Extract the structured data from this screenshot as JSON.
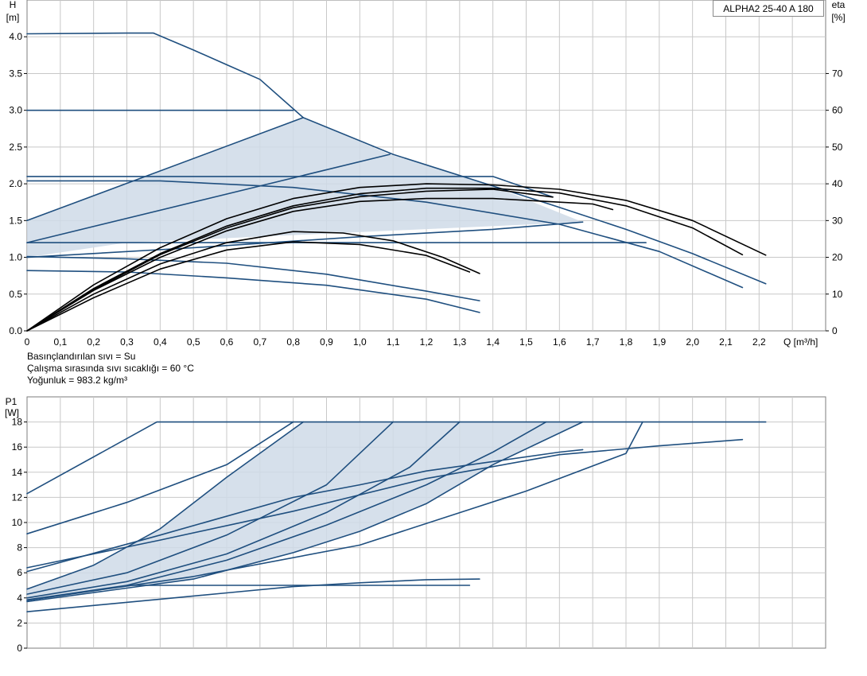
{
  "model": "ALPHA2 25-40 A 180",
  "notes": {
    "liquid": "Basınçlandırılan sıvı = Su",
    "temperature": "Çalışma sırasında sıvı sıcaklığı = 60 °C",
    "density": "Yoğunluk = 983.2 kg/m³"
  },
  "colors": {
    "curve": "#1f4f7f",
    "eff": "#000000",
    "fill": "#cfdae7",
    "grid": "#c8c8c8"
  },
  "chart_data": [
    {
      "type": "line",
      "y_title": "H",
      "y_unit": "[m]",
      "y2_title": "eta",
      "y2_unit": "[%]",
      "x_unit": "Q [m³/h]",
      "xlim": [
        0,
        2.4
      ],
      "ylim": [
        0,
        4.5
      ],
      "y2lim": [
        0,
        90
      ],
      "x_ticks": [
        "0",
        "0,1",
        "0,2",
        "0,3",
        "0,4",
        "0,5",
        "0,6",
        "0,7",
        "0,8",
        "0,9",
        "1,0",
        "1,1",
        "1,2",
        "1,3",
        "1,4",
        "1,5",
        "1,6",
        "1,7",
        "1,8",
        "1,9",
        "2,0",
        "2,1",
        "2,2"
      ],
      "y_ticks": [
        "0.0",
        "0.5",
        "1.0",
        "1.5",
        "2.0",
        "2.5",
        "3.0",
        "3.5",
        "4.0"
      ],
      "y2_ticks": [
        "0",
        "10",
        "20",
        "30",
        "40",
        "50",
        "60",
        "70"
      ],
      "grid": true,
      "shaded_region": [
        [
          0,
          1.5
        ],
        [
          0.83,
          2.9
        ],
        [
          1.09,
          2.4
        ],
        [
          1.4,
          1.97
        ],
        [
          1.67,
          1.48
        ],
        [
          0.3,
          1.2
        ],
        [
          0,
          1.0
        ]
      ],
      "series": [
        {
          "kind": "head",
          "points": [
            [
              0,
              4.04
            ],
            [
              0.3,
              4.05
            ],
            [
              0.38,
              4.05
            ],
            [
              0.5,
              3.82
            ],
            [
              0.6,
              3.62
            ],
            [
              0.7,
              3.42
            ],
            [
              0.83,
              2.9
            ],
            [
              1.1,
              2.4
            ],
            [
              1.4,
              1.97
            ],
            [
              1.6,
              1.68
            ],
            [
              1.8,
              1.38
            ],
            [
              2.0,
              1.05
            ],
            [
              2.22,
              0.64
            ]
          ]
        },
        {
          "kind": "head",
          "points": [
            [
              0,
              3.0
            ],
            [
              0.8,
              3.0
            ]
          ]
        },
        {
          "kind": "head",
          "points": [
            [
              0,
              1.5
            ],
            [
              0.83,
              2.9
            ]
          ]
        },
        {
          "kind": "head",
          "points": [
            [
              0,
              1.2
            ],
            [
              1.09,
              2.4
            ]
          ]
        },
        {
          "kind": "head",
          "points": [
            [
              0,
              1.0
            ],
            [
              0.5,
              1.13
            ],
            [
              1.0,
              1.28
            ],
            [
              1.4,
              1.38
            ],
            [
              1.67,
              1.48
            ]
          ]
        },
        {
          "kind": "head",
          "points": [
            [
              0,
              2.1
            ],
            [
              1.4,
              2.1
            ],
            [
              1.58,
              1.82
            ]
          ]
        },
        {
          "kind": "head",
          "points": [
            [
              0,
              1.2
            ],
            [
              1.86,
              1.2
            ]
          ]
        },
        {
          "kind": "head",
          "points": [
            [
              0,
              2.04
            ],
            [
              0.4,
              2.04
            ],
            [
              0.8,
              1.95
            ],
            [
              1.2,
              1.75
            ],
            [
              1.6,
              1.45
            ],
            [
              1.9,
              1.08
            ],
            [
              2.15,
              0.59
            ]
          ]
        },
        {
          "kind": "head",
          "points": [
            [
              0,
              1.01
            ],
            [
              0.3,
              0.98
            ],
            [
              0.6,
              0.92
            ],
            [
              0.9,
              0.77
            ],
            [
              1.2,
              0.54
            ],
            [
              1.36,
              0.41
            ]
          ]
        },
        {
          "kind": "head",
          "points": [
            [
              0,
              0.82
            ],
            [
              0.3,
              0.8
            ],
            [
              0.6,
              0.72
            ],
            [
              0.9,
              0.62
            ],
            [
              1.2,
              0.43
            ],
            [
              1.36,
              0.25
            ]
          ]
        },
        {
          "kind": "eff",
          "points": [
            [
              0,
              0
            ],
            [
              0.2,
              12.5
            ],
            [
              0.4,
              22.6
            ],
            [
              0.6,
              30.5
            ],
            [
              0.8,
              36
            ],
            [
              1.0,
              39
            ],
            [
              1.2,
              40
            ],
            [
              1.4,
              39.7
            ],
            [
              1.6,
              38.5
            ],
            [
              1.8,
              35.5
            ],
            [
              2.0,
              30
            ],
            [
              2.22,
              20.6
            ]
          ]
        },
        {
          "kind": "eff",
          "points": [
            [
              0,
              0
            ],
            [
              0.2,
              11.5
            ],
            [
              0.4,
              21
            ],
            [
              0.6,
              28.5
            ],
            [
              0.8,
              34
            ],
            [
              1.0,
              37.3
            ],
            [
              1.2,
              38.8
            ],
            [
              1.4,
              38.8
            ],
            [
              1.6,
              37.5
            ],
            [
              1.8,
              34
            ],
            [
              2.0,
              28
            ],
            [
              2.15,
              20.7
            ]
          ]
        },
        {
          "kind": "eff",
          "points": [
            [
              0,
              0
            ],
            [
              0.2,
              11
            ],
            [
              0.4,
              20
            ],
            [
              0.6,
              27.2
            ],
            [
              0.8,
              32.5
            ],
            [
              1.0,
              35.2
            ],
            [
              1.2,
              36
            ],
            [
              1.4,
              36
            ],
            [
              1.6,
              35
            ],
            [
              1.7,
              34.5
            ],
            [
              1.76,
              33
            ]
          ]
        },
        {
          "kind": "eff",
          "points": [
            [
              0,
              0
            ],
            [
              0.2,
              11.2
            ],
            [
              0.4,
              20.7
            ],
            [
              0.6,
              28
            ],
            [
              0.8,
              33.5
            ],
            [
              1.0,
              36.5
            ],
            [
              1.2,
              38
            ],
            [
              1.4,
              38.5
            ],
            [
              1.58,
              36.4
            ]
          ]
        },
        {
          "kind": "eff",
          "points": [
            [
              0,
              0
            ],
            [
              0.2,
              10
            ],
            [
              0.4,
              18.2
            ],
            [
              0.6,
              24
            ],
            [
              0.8,
              27
            ],
            [
              0.95,
              26.6
            ],
            [
              1.1,
              24.5
            ],
            [
              1.25,
              20
            ],
            [
              1.36,
              15.6
            ]
          ]
        },
        {
          "kind": "eff",
          "points": [
            [
              0,
              0
            ],
            [
              0.2,
              9
            ],
            [
              0.4,
              16.8
            ],
            [
              0.6,
              22
            ],
            [
              0.8,
              24.2
            ],
            [
              1.0,
              23.5
            ],
            [
              1.2,
              20.5
            ],
            [
              1.33,
              16
            ]
          ]
        }
      ]
    },
    {
      "type": "line",
      "y_title": "P1",
      "y_unit": "[W]",
      "xlim": [
        0,
        2.4
      ],
      "ylim": [
        0,
        20
      ],
      "y_ticks": [
        "0",
        "2",
        "4",
        "6",
        "8",
        "10",
        "12",
        "14",
        "16",
        "18"
      ],
      "grid": true,
      "shaded_region": [
        [
          0,
          4.7
        ],
        [
          0.2,
          6.6
        ],
        [
          0.4,
          9.5
        ],
        [
          0.6,
          13.6
        ],
        [
          0.83,
          18.0
        ],
        [
          1.67,
          18.0
        ],
        [
          1.4,
          14.6
        ],
        [
          1.2,
          11.5
        ],
        [
          1.0,
          9.3
        ],
        [
          0.8,
          7.6
        ],
        [
          0.5,
          5.5
        ],
        [
          0,
          3.9
        ]
      ],
      "series": [
        {
          "points": [
            [
              0,
              12.3
            ],
            [
              0.39,
              18.0
            ],
            [
              2.22,
              18.0
            ]
          ]
        },
        {
          "points": [
            [
              0,
              9.1
            ],
            [
              0.3,
              11.6
            ],
            [
              0.6,
              14.6
            ],
            [
              0.8,
              18.0
            ]
          ]
        },
        {
          "points": [
            [
              0,
              4.7
            ],
            [
              0.2,
              6.6
            ],
            [
              0.4,
              9.5
            ],
            [
              0.6,
              13.6
            ],
            [
              0.83,
              18.0
            ]
          ]
        },
        {
          "points": [
            [
              0,
              4.3
            ],
            [
              0.3,
              6.0
            ],
            [
              0.6,
              9.0
            ],
            [
              0.9,
              13.0
            ],
            [
              1.1,
              18.0
            ]
          ]
        },
        {
          "points": [
            [
              0,
              4.0
            ],
            [
              0.3,
              5.3
            ],
            [
              0.6,
              7.5
            ],
            [
              0.9,
              10.8
            ],
            [
              1.15,
              14.4
            ],
            [
              1.3,
              18.0
            ]
          ]
        },
        {
          "points": [
            [
              0,
              3.85
            ],
            [
              0.3,
              5.0
            ],
            [
              0.6,
              7.0
            ],
            [
              0.9,
              9.8
            ],
            [
              1.2,
              13.0
            ],
            [
              1.4,
              15.6
            ],
            [
              1.56,
              18.0
            ]
          ]
        },
        {
          "points": [
            [
              0,
              3.7
            ],
            [
              0.5,
              5.5
            ],
            [
              0.8,
              7.6
            ],
            [
              1.0,
              9.3
            ],
            [
              1.2,
              11.5
            ],
            [
              1.4,
              14.6
            ],
            [
              1.67,
              18.0
            ]
          ]
        },
        {
          "points": [
            [
              0,
              3.8
            ],
            [
              0.5,
              5.7
            ],
            [
              1.0,
              8.2
            ],
            [
              1.5,
              12.5
            ],
            [
              1.8,
              15.5
            ],
            [
              1.85,
              18.0
            ]
          ]
        },
        {
          "points": [
            [
              0,
              6.4
            ],
            [
              0.4,
              8.6
            ],
            [
              0.8,
              10.9
            ],
            [
              1.2,
              13.5
            ],
            [
              1.6,
              15.4
            ],
            [
              1.9,
              16.1
            ],
            [
              2.15,
              16.6
            ]
          ]
        },
        {
          "points": [
            [
              0,
              6.1
            ],
            [
              0.4,
              9.0
            ],
            [
              0.8,
              12.0
            ],
            [
              1.0,
              13.0
            ],
            [
              1.2,
              14.1
            ],
            [
              1.6,
              15.6
            ],
            [
              1.67,
              15.8
            ]
          ]
        },
        {
          "points": [
            [
              0,
              2.9
            ],
            [
              0.2,
              3.4
            ],
            [
              0.4,
              3.9
            ],
            [
              0.6,
              4.4
            ],
            [
              0.8,
              4.9
            ],
            [
              1.0,
              5.2
            ],
            [
              1.2,
              5.45
            ],
            [
              1.36,
              5.5
            ]
          ]
        },
        {
          "points": [
            [
              0.3,
              5.0
            ],
            [
              1.33,
              5.0
            ]
          ]
        }
      ]
    }
  ]
}
